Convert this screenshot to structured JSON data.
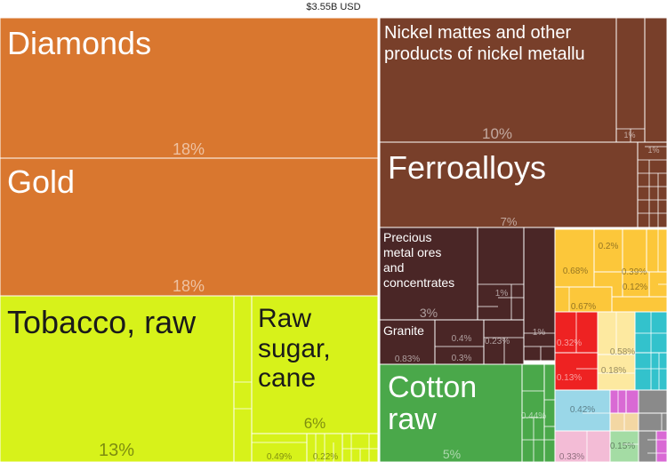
{
  "header": {
    "total": "$3.55B USD"
  },
  "colors": {
    "minerals_orange": "#d9772f",
    "agri_lime": "#d7f21a",
    "metals_brown": "#783f2a",
    "stone_darkbrown": "#4a2626",
    "textiles_green": "#4aa84a",
    "chemicals_yellow": "#fcc73a",
    "machinery_red": "#ee2222",
    "foods_cream": "#fde9a0",
    "electronics_teal": "#33c2cc",
    "transport_lightblue": "#9ad7e8",
    "plastics_pink": "#f3bcd6",
    "misc_magenta": "#d96ad4",
    "vehicles_gray": "#8a8a8a",
    "paper_lightgreen": "#a4dca4",
    "other_beige": "#f3d7a3"
  },
  "chart_data": {
    "type": "treemap",
    "title": "",
    "total_label": "$3.55B USD",
    "labeled_items": [
      {
        "name": "Diamonds",
        "percent_label": "18%",
        "category": "minerals"
      },
      {
        "name": "Gold",
        "percent_label": "18%",
        "category": "minerals"
      },
      {
        "name": "Tobacco, raw",
        "percent_label": "13%",
        "category": "agriculture"
      },
      {
        "name": "Raw sugar, cane",
        "percent_label": "6%",
        "category": "agriculture"
      },
      {
        "name": "Nickel mattes and other products of nickel metallu",
        "percent_label": "10%",
        "category": "metals"
      },
      {
        "name": "Ferroalloys",
        "percent_label": "7%",
        "category": "metals"
      },
      {
        "name": "Precious metal ores and concentrates",
        "percent_label": "3%",
        "category": "minerals"
      },
      {
        "name": "Granite",
        "percent_label": "0.83%",
        "category": "stone"
      },
      {
        "name": "Cotton raw",
        "percent_label": "5%",
        "category": "textiles"
      }
    ],
    "small_percent_labels": [
      "0.49%",
      "0.22%",
      "1%",
      "1%",
      "1%",
      "0.4%",
      "0.23%",
      "0.3%",
      "1%",
      "0.2%",
      "0.68%",
      "0.39%",
      "0.12%",
      "0.67%",
      "0.32%",
      "0.58%",
      "0.13%",
      "0.18%",
      "0.44%",
      "0.42%",
      "0.15%",
      "0.33%"
    ]
  },
  "labels": {
    "diamonds": "Diamonds",
    "diamonds_pct": "18%",
    "gold": "Gold",
    "gold_pct": "18%",
    "tobacco": "Tobacco, raw",
    "tobacco_pct": "13%",
    "sugar_1": "Raw",
    "sugar_2": "sugar,",
    "sugar_3": "cane",
    "sugar_pct": "6%",
    "nickel_1": "Nickel mattes and other",
    "nickel_2": "products of nickel metallu",
    "nickel_pct": "10%",
    "ferro": "Ferroalloys",
    "ferro_pct": "7%",
    "precious_1": "Precious",
    "precious_2": "metal ores",
    "precious_3": "and",
    "precious_4": "concentrates",
    "precious_pct": "3%",
    "granite": "Granite",
    "granite_pct": "0.83%",
    "cotton_1": "Cotton",
    "cotton_2": "raw",
    "cotton_pct": "5%",
    "p_049": "0.49%",
    "p_022": "0.22%",
    "p_1a": "1%",
    "p_1b": "1%",
    "p_1c": "1%",
    "p_1d": "1%",
    "p_04": "0.4%",
    "p_023": "0.23%",
    "p_03": "0.3%",
    "p_02": "0.2%",
    "p_068": "0.68%",
    "p_039": "0.39%",
    "p_012": "0.12%",
    "p_067": "0.67%",
    "p_032": "0.32%",
    "p_058": "0.58%",
    "p_013": "0.13%",
    "p_018": "0.18%",
    "p_044": "0.44%",
    "p_042": "0.42%",
    "p_015": "0.15%",
    "p_033": "0.33%"
  }
}
